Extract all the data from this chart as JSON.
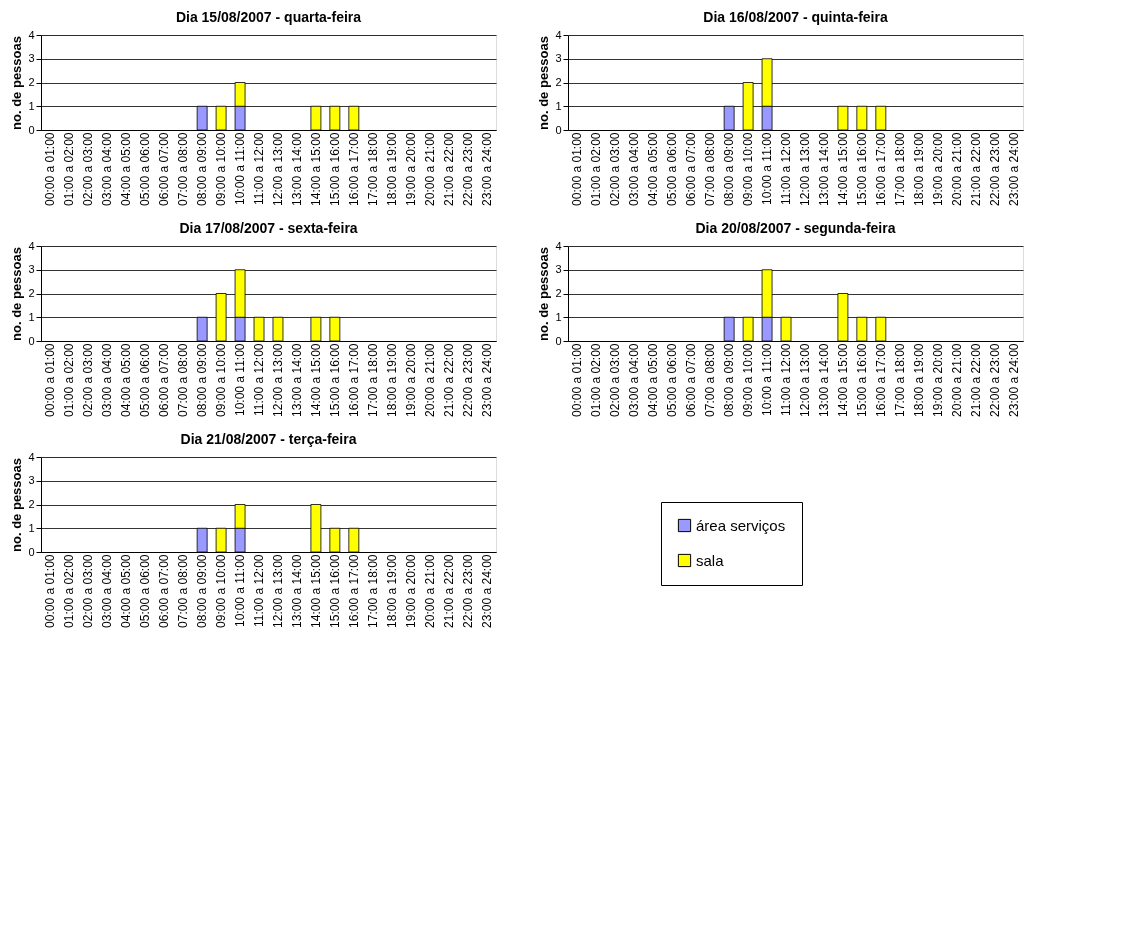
{
  "chart_data": [
    {
      "type": "bar",
      "stacked": true,
      "title": "Dia 15/08/2007 - quarta-feira",
      "ylabel": "no. de pessoas",
      "ylim": [
        0,
        4
      ],
      "yticks": [
        0,
        1,
        2,
        3,
        4
      ],
      "grid": "y",
      "legend": false,
      "categories": [
        "00:00 a 01:00",
        "01:00 a 02:00",
        "02:00 a 03:00",
        "03:00 a 04:00",
        "04:00 a 05:00",
        "05:00 a 06:00",
        "06:00 a 07:00",
        "07:00 a 08:00",
        "08:00 a 09:00",
        "09:00 a 10:00",
        "10:00 a 11:00",
        "11:00 a 12:00",
        "12:00 a 13:00",
        "13:00 a 14:00",
        "14:00 a 15:00",
        "15:00 a 16:00",
        "16:00 a 17:00",
        "17:00 a 18:00",
        "18:00 a 19:00",
        "19:00 a 20:00",
        "20:00 a 21:00",
        "21:00 a 22:00",
        "22:00 a 23:00",
        "23:00 a 24:00"
      ],
      "series": [
        {
          "color": "#9999ff",
          "values": [
            0,
            0,
            0,
            0,
            0,
            0,
            0,
            0,
            1,
            0,
            1,
            0,
            0,
            0,
            0,
            0,
            0,
            0,
            0,
            0,
            0,
            0,
            0,
            0
          ]
        },
        {
          "color": "#ffff00",
          "values": [
            0,
            0,
            0,
            0,
            0,
            0,
            0,
            0,
            0,
            1,
            1,
            0,
            0,
            0,
            1,
            1,
            1,
            0,
            0,
            0,
            0,
            0,
            0,
            0
          ]
        }
      ]
    },
    {
      "type": "bar",
      "stacked": true,
      "title": "Dia 16/08/2007 - quinta-feira",
      "ylabel": "no. de pessoas",
      "ylim": [
        0,
        4
      ],
      "yticks": [
        0,
        1,
        2,
        3,
        4
      ],
      "grid": "y",
      "legend": false,
      "categories": [
        "00:00 a 01:00",
        "01:00 a 02:00",
        "02:00 a 03:00",
        "03:00 a 04:00",
        "04:00 a 05:00",
        "05:00 a 06:00",
        "06:00 a 07:00",
        "07:00 a 08:00",
        "08:00 a 09:00",
        "09:00 a 10:00",
        "10:00 a 11:00",
        "11:00 a 12:00",
        "12:00 a 13:00",
        "13:00 a 14:00",
        "14:00 a 15:00",
        "15:00 a 16:00",
        "16:00 a 17:00",
        "17:00 a 18:00",
        "18:00 a 19:00",
        "19:00 a 20:00",
        "20:00 a 21:00",
        "21:00 a 22:00",
        "22:00 a 23:00",
        "23:00 a 24:00"
      ],
      "series": [
        {
          "color": "#9999ff",
          "values": [
            0,
            0,
            0,
            0,
            0,
            0,
            0,
            0,
            1,
            0,
            1,
            0,
            0,
            0,
            0,
            0,
            0,
            0,
            0,
            0,
            0,
            0,
            0,
            0
          ]
        },
        {
          "color": "#ffff00",
          "values": [
            0,
            0,
            0,
            0,
            0,
            0,
            0,
            0,
            0,
            2,
            2,
            0,
            0,
            0,
            1,
            1,
            1,
            0,
            0,
            0,
            0,
            0,
            0,
            0
          ]
        }
      ]
    },
    {
      "type": "bar",
      "stacked": true,
      "title": "Dia 17/08/2007 - sexta-feira",
      "ylabel": "no. de pessoas",
      "ylim": [
        0,
        4
      ],
      "yticks": [
        0,
        1,
        2,
        3,
        4
      ],
      "grid": "y",
      "legend": false,
      "categories": [
        "00:00 a 01:00",
        "01:00 a 02:00",
        "02:00 a 03:00",
        "03:00 a 04:00",
        "04:00 a 05:00",
        "05:00 a 06:00",
        "06:00 a 07:00",
        "07:00 a 08:00",
        "08:00 a 09:00",
        "09:00 a 10:00",
        "10:00 a 11:00",
        "11:00 a 12:00",
        "12:00 a 13:00",
        "13:00 a 14:00",
        "14:00 a 15:00",
        "15:00 a 16:00",
        "16:00 a 17:00",
        "17:00 a 18:00",
        "18:00 a 19:00",
        "19:00 a 20:00",
        "20:00 a 21:00",
        "21:00 a 22:00",
        "22:00 a 23:00",
        "23:00 a 24:00"
      ],
      "series": [
        {
          "color": "#9999ff",
          "values": [
            0,
            0,
            0,
            0,
            0,
            0,
            0,
            0,
            1,
            0,
            1,
            0,
            0,
            0,
            0,
            0,
            0,
            0,
            0,
            0,
            0,
            0,
            0,
            0
          ]
        },
        {
          "color": "#ffff00",
          "values": [
            0,
            0,
            0,
            0,
            0,
            0,
            0,
            0,
            0,
            2,
            2,
            1,
            1,
            0,
            1,
            1,
            0,
            0,
            0,
            0,
            0,
            0,
            0,
            0
          ]
        }
      ]
    },
    {
      "type": "bar",
      "stacked": true,
      "title": "Dia 20/08/2007 - segunda-feira",
      "ylabel": "no. de pessoas",
      "ylim": [
        0,
        4
      ],
      "yticks": [
        0,
        1,
        2,
        3,
        4
      ],
      "grid": "y",
      "legend": false,
      "categories": [
        "00:00 a 01:00",
        "01:00 a 02:00",
        "02:00 a 03:00",
        "03:00 a 04:00",
        "04:00 a 05:00",
        "05:00 a 06:00",
        "06:00 a 07:00",
        "07:00 a 08:00",
        "08:00 a 09:00",
        "09:00 a 10:00",
        "10:00 a 11:00",
        "11:00 a 12:00",
        "12:00 a 13:00",
        "13:00 a 14:00",
        "14:00 a 15:00",
        "15:00 a 16:00",
        "16:00 a 17:00",
        "17:00 a 18:00",
        "18:00 a 19:00",
        "19:00 a 20:00",
        "20:00 a 21:00",
        "21:00 a 22:00",
        "22:00 a 23:00",
        "23:00 a 24:00"
      ],
      "series": [
        {
          "color": "#9999ff",
          "values": [
            0,
            0,
            0,
            0,
            0,
            0,
            0,
            0,
            1,
            0,
            1,
            0,
            0,
            0,
            0,
            0,
            0,
            0,
            0,
            0,
            0,
            0,
            0,
            0
          ]
        },
        {
          "color": "#ffff00",
          "values": [
            0,
            0,
            0,
            0,
            0,
            0,
            0,
            0,
            0,
            1,
            2,
            1,
            0,
            0,
            2,
            1,
            1,
            0,
            0,
            0,
            0,
            0,
            0,
            0
          ]
        }
      ]
    },
    {
      "type": "bar",
      "stacked": true,
      "title": "Dia 21/08/2007 - terça-feira",
      "ylabel": "no. de pessoas",
      "ylim": [
        0,
        4
      ],
      "yticks": [
        0,
        1,
        2,
        3,
        4
      ],
      "grid": "y",
      "legend": "right",
      "categories": [
        "00:00 a 01:00",
        "01:00 a 02:00",
        "02:00 a 03:00",
        "03:00 a 04:00",
        "04:00 a 05:00",
        "05:00 a 06:00",
        "06:00 a 07:00",
        "07:00 a 08:00",
        "08:00 a 09:00",
        "09:00 a 10:00",
        "10:00 a 11:00",
        "11:00 a 12:00",
        "12:00 a 13:00",
        "13:00 a 14:00",
        "14:00 a 15:00",
        "15:00 a 16:00",
        "16:00 a 17:00",
        "17:00 a 18:00",
        "18:00 a 19:00",
        "19:00 a 20:00",
        "20:00 a 21:00",
        "21:00 a 22:00",
        "22:00 a 23:00",
        "23:00 a 24:00"
      ],
      "series": [
        {
          "name": "área serviços",
          "color": "#9999ff",
          "values": [
            0,
            0,
            0,
            0,
            0,
            0,
            0,
            0,
            1,
            0,
            1,
            0,
            0,
            0,
            0,
            0,
            0,
            0,
            0,
            0,
            0,
            0,
            0,
            0
          ]
        },
        {
          "name": "sala",
          "color": "#ffff00",
          "values": [
            0,
            0,
            0,
            0,
            0,
            0,
            0,
            0,
            0,
            1,
            1,
            0,
            0,
            0,
            2,
            1,
            1,
            0,
            0,
            0,
            0,
            0,
            0,
            0
          ]
        }
      ]
    }
  ]
}
